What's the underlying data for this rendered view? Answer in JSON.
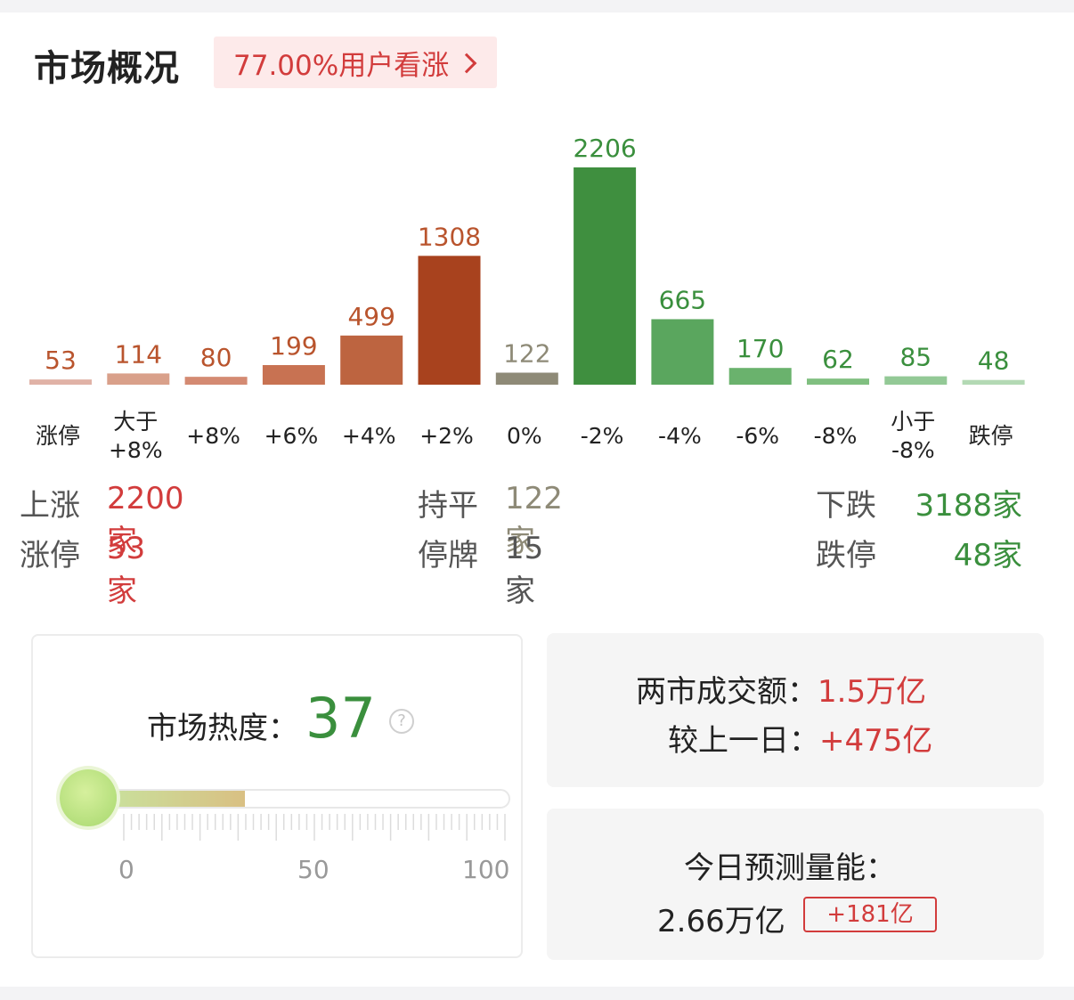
{
  "title": "市场概况",
  "sentiment": {
    "label": "77.00%用户看涨"
  },
  "chart_data": {
    "type": "bar",
    "categories": [
      "涨停",
      "大于\n+8%",
      "+8%",
      "+6%",
      "+4%",
      "+2%",
      "0%",
      "-2%",
      "-4%",
      "-6%",
      "-8%",
      "小于\n-8%",
      "跌停"
    ],
    "values": [
      53,
      114,
      80,
      199,
      499,
      1308,
      122,
      2206,
      665,
      170,
      62,
      85,
      48
    ],
    "colors": [
      "#e0b2a6",
      "#d9a08a",
      "#d48a72",
      "#c87252",
      "#bd6440",
      "#a8421e",
      "#8e8a77",
      "#3f8f3f",
      "#5aa65e",
      "#6ab26d",
      "#80bf80",
      "#93c996",
      "#b3d9b4"
    ],
    "label_colors": [
      "#b9542d",
      "#b9542d",
      "#b9542d",
      "#b9542d",
      "#b9542d",
      "#b9542d",
      "#8e8a77",
      "#3a8f3d",
      "#3a8f3d",
      "#3a8f3d",
      "#3a8f3d",
      "#3a8f3d",
      "#3a8f3d"
    ],
    "title": "",
    "xlabel": "",
    "ylabel": ""
  },
  "stats": {
    "up_label": "上涨",
    "up_value": "2200家",
    "flat_label": "持平",
    "flat_value": "122家",
    "down_label": "下跌",
    "down_value": "3188家",
    "limit_up_label": "涨停",
    "limit_up_value": "53家",
    "suspended_label": "停牌",
    "suspended_value": "15家",
    "limit_down_label": "跌停",
    "limit_down_value": "48家"
  },
  "heat": {
    "label": "市场热度：",
    "value": 37,
    "value_text": "37",
    "help": "?",
    "scale_labels": [
      "0",
      "50",
      "100"
    ]
  },
  "turnover": {
    "label": "两市成交额：",
    "value": "1.5万亿",
    "compare_label": "较上一日：",
    "compare_value": "+475亿"
  },
  "forecast": {
    "label": "今日预测量能：",
    "value": "2.66万亿",
    "delta": "+181亿"
  },
  "colors": {
    "up_red": "#d23c3c",
    "down_green": "#3a8f3d",
    "flat": "#8e8a77"
  }
}
